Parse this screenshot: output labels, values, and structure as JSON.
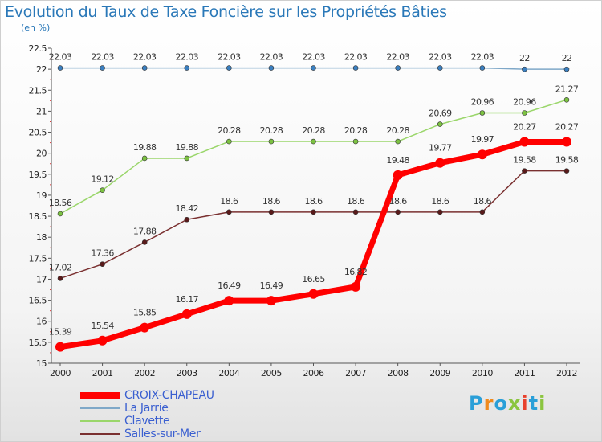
{
  "title": "Evolution du Taux de Taxe Foncière sur les Propriétés Bâties",
  "subtitle": "(en %)",
  "logo": {
    "text": "Proxiti",
    "colors": [
      "#2a9fd8",
      "#f08a1c",
      "#2a9fd8",
      "#8bc53f",
      "#e8412c",
      "#2a9fd8",
      "#8bc53f"
    ]
  },
  "chart_data": {
    "type": "line",
    "title": "Evolution du Taux de Taxe Foncière sur les Propriétés Bâties",
    "ylabel": "(en %)",
    "xlabel": "",
    "ylim": [
      15,
      22.5
    ],
    "yticks": [
      15,
      15.5,
      16,
      16.5,
      17,
      17.5,
      18,
      18.5,
      19,
      19.5,
      20,
      20.5,
      21,
      21.5,
      22,
      22.5
    ],
    "ytick_labels": [
      "15",
      "15.5",
      "16",
      "16.5",
      "17",
      "17.5",
      "18",
      "18.5",
      "19",
      "19.5",
      "20",
      "20.5",
      "21",
      "21.5",
      "22",
      "22.5"
    ],
    "x": [
      "2000",
      "2001",
      "2002",
      "2003",
      "2004",
      "2005",
      "2006",
      "2007",
      "2008",
      "2009",
      "2010",
      "2011",
      "2012"
    ],
    "grid": false,
    "legend_position": "bottom-left",
    "series": [
      {
        "name": "CROIX-CHAPEAU",
        "color": "#ff0000",
        "marker_color": "#ff0000",
        "width": 7,
        "values": [
          15.39,
          15.54,
          15.85,
          16.17,
          16.49,
          16.49,
          16.65,
          16.82,
          19.48,
          19.77,
          19.97,
          20.27,
          20.27
        ],
        "labels": [
          "15.39",
          "15.54",
          "15.85",
          "16.17",
          "16.49",
          "16.49",
          "16.65",
          "16.82",
          "19.48",
          "19.77",
          "19.97",
          "20.27",
          "20.27"
        ]
      },
      {
        "name": "La Jarrie",
        "color": "#7fa8c8",
        "marker_color": "#3a7fc0",
        "width": 1.5,
        "values": [
          22.03,
          22.03,
          22.03,
          22.03,
          22.03,
          22.03,
          22.03,
          22.03,
          22.03,
          22.03,
          22.03,
          22,
          22
        ],
        "labels": [
          "22.03",
          "22.03",
          "22.03",
          "22.03",
          "22.03",
          "22.03",
          "22.03",
          "22.03",
          "22.03",
          "22.03",
          "22.03",
          "22",
          "22"
        ]
      },
      {
        "name": "Clavette",
        "color": "#9ad66a",
        "marker_color": "#7cc242",
        "width": 1.5,
        "values": [
          18.56,
          19.12,
          19.88,
          19.88,
          20.28,
          20.28,
          20.28,
          20.28,
          20.28,
          20.69,
          20.96,
          20.96,
          21.27
        ],
        "labels": [
          "18.56",
          "19.12",
          "19.88",
          "19.88",
          "20.28",
          "20.28",
          "20.28",
          "20.28",
          "20.28",
          "20.69",
          "20.96",
          "20.96",
          "21.27"
        ]
      },
      {
        "name": "Salles-sur-Mer",
        "color": "#7a3030",
        "marker_color": "#5a1a1a",
        "width": 1.5,
        "values": [
          17.02,
          17.36,
          17.88,
          18.42,
          18.6,
          18.6,
          18.6,
          18.6,
          18.6,
          18.6,
          18.6,
          19.58,
          19.58
        ],
        "labels": [
          "17.02",
          "17.36",
          "17.88",
          "18.42",
          "18.6",
          "18.6",
          "18.6",
          "18.6",
          "18.6",
          "18.6",
          "18.6",
          "19.58",
          "19.58"
        ]
      }
    ]
  }
}
